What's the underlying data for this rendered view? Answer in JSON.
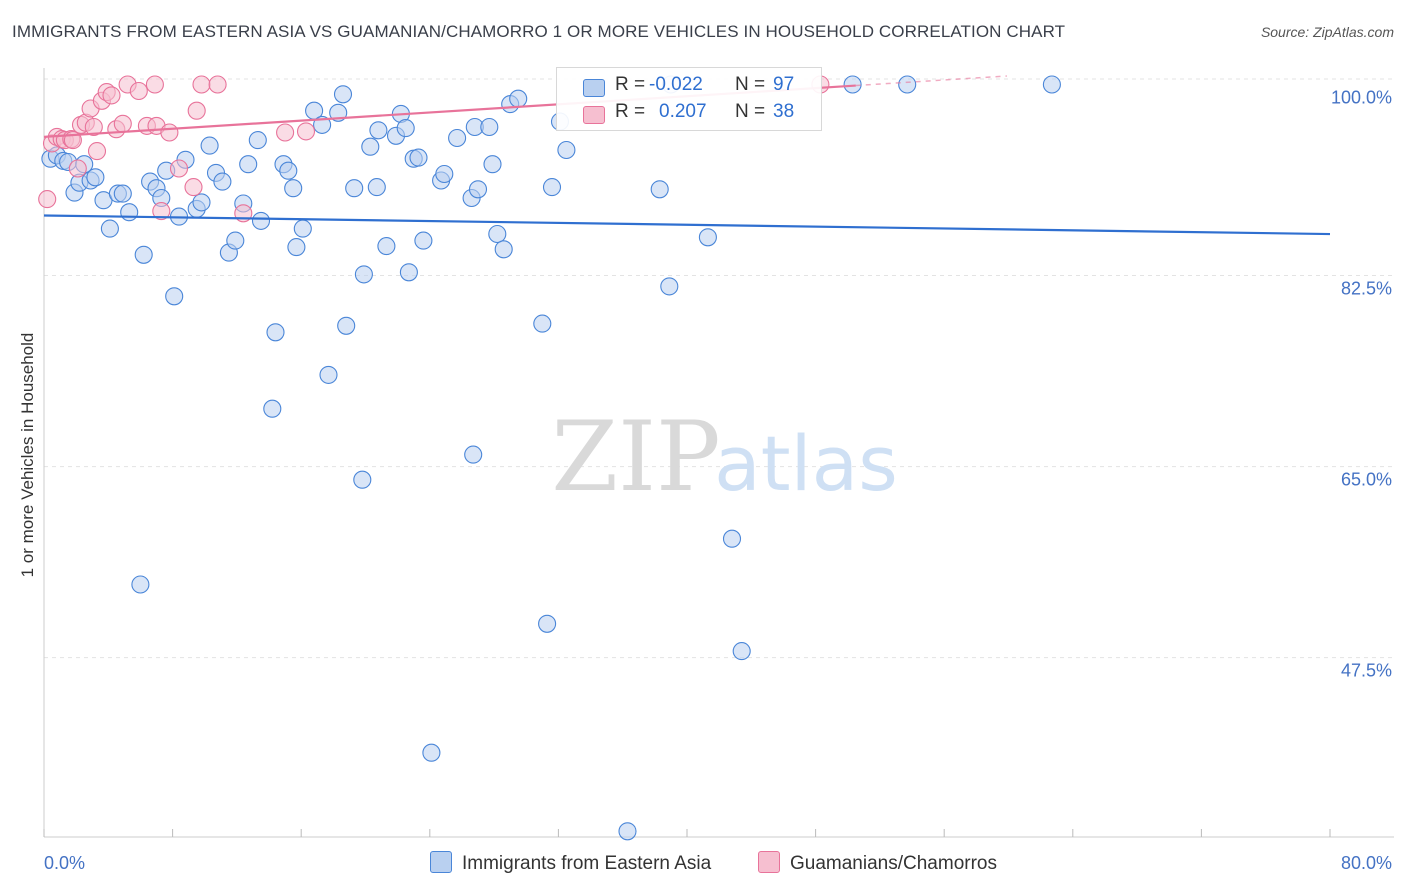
{
  "header": {
    "title": "IMMIGRANTS FROM EASTERN ASIA VS GUAMANIAN/CHAMORRO 1 OR MORE VEHICLES IN HOUSEHOLD CORRELATION CHART",
    "source": "Source: ZipAtlas.com"
  },
  "watermark": {
    "zip": "ZIP",
    "atlas": "atlas"
  },
  "colors": {
    "blue": "#4a86d8",
    "blue_fill": "#b9d0f0",
    "blue_line": "#2f6fd0",
    "pink": "#e8739a",
    "pink_fill": "#f6bfd0",
    "pink_line": "#e8739a",
    "axis_text": "#4472c4",
    "grid": "#dddddd"
  },
  "stats": {
    "series1": {
      "r_label": "R =",
      "r_value": "-0.022",
      "n_label": "N =",
      "n_value": "97"
    },
    "series2": {
      "r_label": "R =",
      "r_value": "0.207",
      "n_label": "N =",
      "n_value": "38"
    }
  },
  "legend": {
    "series1": "Immigrants from Eastern Asia",
    "series2": "Guamanians/Chamorros"
  },
  "chart_data": {
    "type": "scatter",
    "title": "IMMIGRANTS FROM EASTERN ASIA VS GUAMANIAN/CHAMORRO 1 OR MORE VEHICLES IN HOUSEHOLD CORRELATION CHART",
    "xlabel": "",
    "ylabel": "1 or more Vehicles in Household",
    "xlim": [
      0,
      80
    ],
    "ylim": [
      31.6,
      101.5
    ],
    "x_tick_labels": [
      "0.0%",
      "80.0%"
    ],
    "y_ticks": [
      {
        "value": 100.0,
        "label": "100.0%"
      },
      {
        "value": 82.5,
        "label": "82.5%"
      },
      {
        "value": 65.0,
        "label": "65.0%"
      },
      {
        "value": 47.5,
        "label": "47.5%"
      }
    ],
    "series": [
      {
        "name": "Immigrants from Eastern Asia",
        "color": "#4a86d8",
        "r": -0.022,
        "n": 97,
        "trend": {
          "x": [
            0,
            80
          ],
          "y": [
            88.0,
            86.3
          ]
        },
        "points": [
          [
            0.4,
            93.2
          ],
          [
            0.8,
            93.5
          ],
          [
            1.2,
            93.0
          ],
          [
            1.5,
            92.9
          ],
          [
            1.9,
            90.1
          ],
          [
            2.2,
            91.0
          ],
          [
            2.5,
            92.7
          ],
          [
            2.9,
            91.2
          ],
          [
            3.2,
            91.5
          ],
          [
            3.7,
            89.4
          ],
          [
            4.1,
            86.8
          ],
          [
            4.6,
            90.0
          ],
          [
            4.9,
            90.0
          ],
          [
            5.3,
            88.3
          ],
          [
            6.2,
            84.4
          ],
          [
            6.6,
            91.1
          ],
          [
            7.0,
            90.5
          ],
          [
            7.3,
            89.6
          ],
          [
            7.6,
            92.1
          ],
          [
            8.1,
            80.6
          ],
          [
            8.4,
            87.9
          ],
          [
            8.8,
            93.1
          ],
          [
            9.5,
            88.6
          ],
          [
            9.8,
            89.2
          ],
          [
            10.3,
            94.4
          ],
          [
            10.7,
            91.9
          ],
          [
            11.1,
            91.1
          ],
          [
            11.5,
            84.6
          ],
          [
            11.9,
            85.7
          ],
          [
            12.4,
            89.1
          ],
          [
            12.7,
            92.7
          ],
          [
            13.3,
            94.9
          ],
          [
            13.5,
            87.5
          ],
          [
            14.2,
            70.3
          ],
          [
            14.4,
            77.3
          ],
          [
            14.9,
            92.7
          ],
          [
            15.2,
            92.1
          ],
          [
            15.5,
            90.5
          ],
          [
            15.7,
            85.1
          ],
          [
            16.1,
            86.8
          ],
          [
            16.8,
            97.6
          ],
          [
            17.3,
            96.3
          ],
          [
            17.7,
            73.4
          ],
          [
            18.3,
            97.4
          ],
          [
            18.6,
            99.1
          ],
          [
            18.8,
            77.9
          ],
          [
            19.3,
            90.5
          ],
          [
            19.8,
            63.8
          ],
          [
            19.9,
            82.6
          ],
          [
            20.3,
            94.3
          ],
          [
            20.7,
            90.6
          ],
          [
            20.8,
            95.8
          ],
          [
            21.3,
            85.2
          ],
          [
            21.9,
            95.3
          ],
          [
            22.2,
            97.3
          ],
          [
            22.5,
            96.0
          ],
          [
            22.7,
            82.8
          ],
          [
            23.0,
            93.2
          ],
          [
            23.3,
            93.3
          ],
          [
            23.6,
            85.7
          ],
          [
            24.7,
            91.2
          ],
          [
            24.9,
            91.8
          ],
          [
            25.7,
            95.1
          ],
          [
            26.6,
            89.6
          ],
          [
            26.8,
            96.1
          ],
          [
            27.0,
            90.4
          ],
          [
            27.7,
            96.1
          ],
          [
            27.9,
            92.7
          ],
          [
            28.2,
            86.3
          ],
          [
            28.6,
            84.9
          ],
          [
            29.0,
            98.2
          ],
          [
            29.5,
            98.7
          ],
          [
            31.0,
            78.1
          ],
          [
            31.6,
            90.6
          ],
          [
            32.1,
            96.6
          ],
          [
            32.5,
            94.0
          ],
          [
            39.0,
            100.0
          ],
          [
            38.3,
            90.4
          ],
          [
            38.9,
            81.5
          ],
          [
            41.3,
            86.0
          ],
          [
            50.3,
            100.0
          ],
          [
            53.7,
            100.0
          ],
          [
            62.7,
            100.0
          ],
          [
            6.0,
            54.2
          ],
          [
            26.7,
            66.1
          ],
          [
            24.1,
            38.8
          ],
          [
            31.3,
            50.6
          ],
          [
            36.3,
            31.6
          ],
          [
            42.8,
            58.4
          ],
          [
            43.4,
            48.1
          ]
        ]
      },
      {
        "name": "Guamanians/Chamorros",
        "color": "#e8739a",
        "r": 0.207,
        "n": 38,
        "trend": {
          "x": [
            0,
            50.5
          ],
          "y": [
            95.2,
            99.9
          ],
          "solid_until_x": 50.5,
          "dashed_until_x": 59.9
        },
        "points": [
          [
            0.2,
            89.5
          ],
          [
            0.5,
            94.6
          ],
          [
            0.8,
            95.2
          ],
          [
            1.1,
            95.0
          ],
          [
            1.3,
            94.9
          ],
          [
            1.7,
            95.0
          ],
          [
            1.8,
            94.9
          ],
          [
            2.1,
            92.3
          ],
          [
            2.3,
            96.3
          ],
          [
            2.6,
            96.5
          ],
          [
            2.9,
            97.8
          ],
          [
            3.1,
            96.1
          ],
          [
            3.3,
            93.9
          ],
          [
            3.6,
            98.5
          ],
          [
            3.9,
            99.3
          ],
          [
            4.2,
            99.0
          ],
          [
            4.5,
            95.9
          ],
          [
            4.9,
            96.4
          ],
          [
            5.2,
            100.0
          ],
          [
            5.9,
            99.4
          ],
          [
            6.4,
            96.2
          ],
          [
            6.9,
            100.0
          ],
          [
            7.0,
            96.2
          ],
          [
            7.3,
            88.4
          ],
          [
            7.8,
            95.6
          ],
          [
            8.4,
            92.3
          ],
          [
            9.3,
            90.6
          ],
          [
            9.5,
            97.6
          ],
          [
            9.8,
            100.0
          ],
          [
            10.8,
            100.0
          ],
          [
            12.4,
            88.2
          ],
          [
            15.0,
            95.6
          ],
          [
            16.3,
            95.7
          ],
          [
            48.3,
            100.0
          ]
        ]
      }
    ]
  }
}
